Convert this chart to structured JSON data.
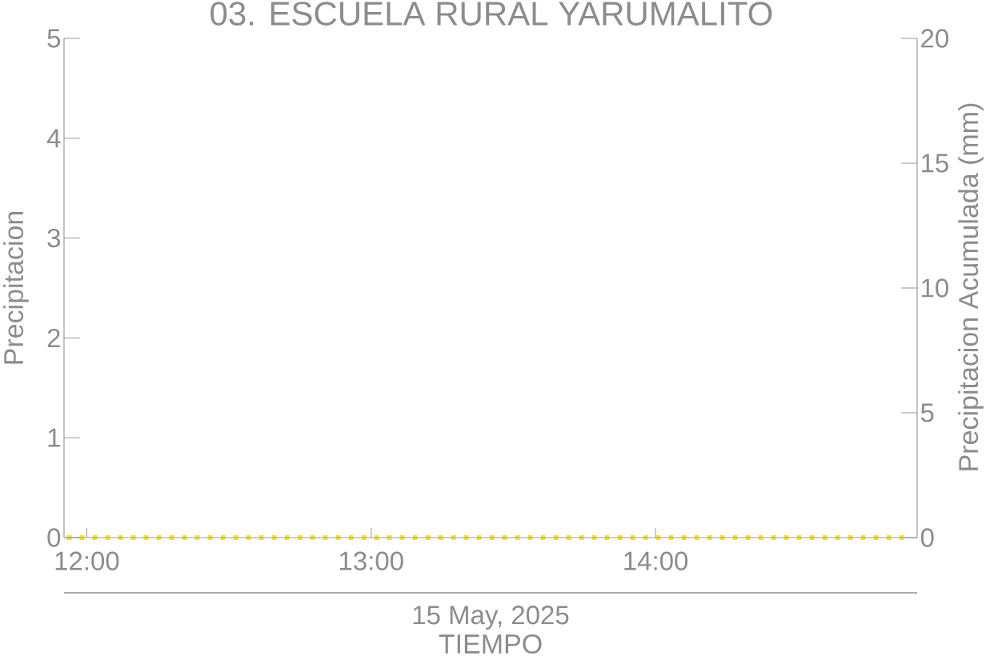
{
  "chart_data": {
    "type": "line",
    "title": "03. ESCUELA RURAL YARUMALITO",
    "xlabel": "TIEMPO",
    "ylabel": "Precipitacion",
    "y2label": "Precipitacion Acumulada (mm)",
    "annotations": [
      "15 May, 2025"
    ],
    "xlim": [
      11.92,
      14.92
    ],
    "xticks": [
      {
        "value": 12,
        "label": "12:00"
      },
      {
        "value": 13,
        "label": "13:00"
      },
      {
        "value": 14,
        "label": "14:00"
      }
    ],
    "ylim": [
      0,
      5
    ],
    "yticks": [
      0,
      1,
      2,
      3,
      4,
      5
    ],
    "y2lim": [
      0,
      20
    ],
    "y2ticks": [
      0,
      5,
      10,
      15,
      20
    ],
    "series": [
      {
        "color": "#f5e13a",
        "axis": "y2",
        "line_style": "dotted",
        "x": [
          11.93,
          14.89
        ],
        "values": [
          0,
          0
        ]
      }
    ]
  }
}
